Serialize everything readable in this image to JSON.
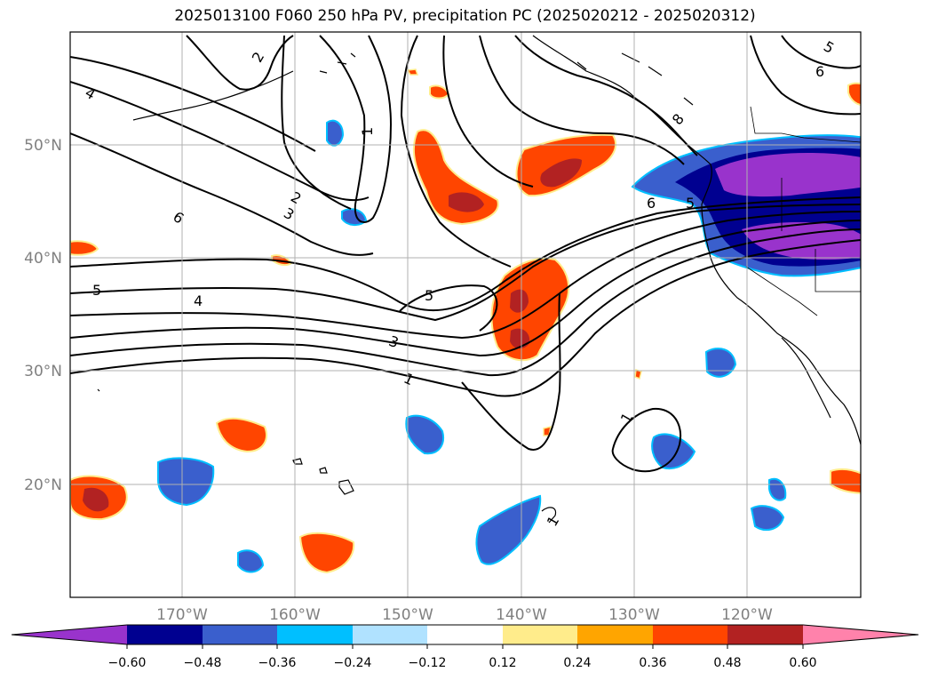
{
  "title": "2025013100 F060 250 hPa PV, precipitation PC (2025020212 - 2025020312)",
  "lat_labels": [
    "50°N",
    "40°N",
    "30°N",
    "20°N"
  ],
  "lon_labels": [
    "170°W",
    "160°W",
    "150°W",
    "140°W",
    "130°W",
    "120°W"
  ],
  "contour_labels": [
    "2",
    "1",
    "4",
    "6",
    "2",
    "3",
    "8",
    "6",
    "6",
    "5",
    "5",
    "4",
    "5",
    "3",
    "1",
    "1",
    "5",
    "1"
  ],
  "colorbar": {
    "tick_labels": [
      "−0.60",
      "−0.48",
      "−0.36",
      "−0.24",
      "−0.12",
      "0.12",
      "0.24",
      "0.36",
      "0.48",
      "0.60"
    ],
    "colors": [
      "#9933cc",
      "#000090",
      "#3a5fcd",
      "#00bfff",
      "#b0e2ff",
      "#ffffff",
      "#ffec8b",
      "#ffa500",
      "#ff4500",
      "#b22222",
      "#ff82ab"
    ]
  },
  "colors": {
    "neg_strong": "#9933cc",
    "neg_navy": "#000090",
    "neg_blue": "#3a5fcd",
    "neg_cyan": "#00bfff",
    "pos_yellow": "#ffec8b",
    "pos_orange": "#ff4500",
    "pos_red": "#b22222"
  }
}
